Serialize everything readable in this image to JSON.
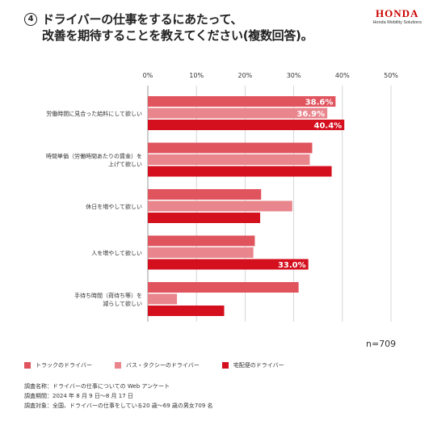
{
  "title": {
    "number": "4",
    "line1": "ドライバーの仕事をするにあたって、",
    "line2": "改善を期待することを教えてください(複数回答)。"
  },
  "logo": {
    "wordmark": "HONDA",
    "sub": "Honda Mobility Solutions"
  },
  "colors": {
    "truck": "#e0545e",
    "bus": "#e9858c",
    "delivery": "#d40f1e",
    "grid": "#cccccc"
  },
  "n_label": "n=709",
  "notes": [
    "調査名称：ドライバーの仕事についての Web アンケート",
    "調査期間：2024 年 8 月 9 日〜8 月 17 日",
    "調査対象：全国、ドライバーの仕事をしている20 歳〜69 歳の男女709 名"
  ],
  "chart_data": {
    "type": "bar",
    "orientation": "horizontal",
    "categories": [
      [
        "労働時間に見合った給料にして欲しい"
      ],
      [
        "時間単価（労働時間あたりの賃金）を",
        "上げて欲しい"
      ],
      [
        "休日を増やして欲しい"
      ],
      [
        "人を増やして欲しい"
      ],
      [
        "手待ち時間（荷待ち等）を",
        "減らして欲しい"
      ]
    ],
    "xlim": [
      0,
      50
    ],
    "ticks": [
      0,
      10,
      20,
      30,
      40,
      50
    ],
    "tick_labels": [
      "0%",
      "10%",
      "20%",
      "30%",
      "40%",
      "50%"
    ],
    "grid": true,
    "legend_position": "bottom-left",
    "series": [
      {
        "name": "トラックのドライバー",
        "color_key": "truck",
        "values": [
          38.6,
          33.8,
          23.3,
          22.0,
          31.0
        ],
        "labels": [
          "38.6%",
          "",
          "",
          "",
          ""
        ]
      },
      {
        "name": "バス・タクシーのドライバー",
        "color_key": "bus",
        "values": [
          36.9,
          33.3,
          29.7,
          21.7,
          6.0
        ],
        "labels": [
          "36.9%",
          "",
          "",
          "",
          ""
        ]
      },
      {
        "name": "宅配便のドライバー",
        "color_key": "delivery",
        "values": [
          40.4,
          37.8,
          23.1,
          33.0,
          15.7
        ],
        "labels": [
          "40.4%",
          "",
          "",
          "33.0%",
          ""
        ]
      }
    ]
  }
}
